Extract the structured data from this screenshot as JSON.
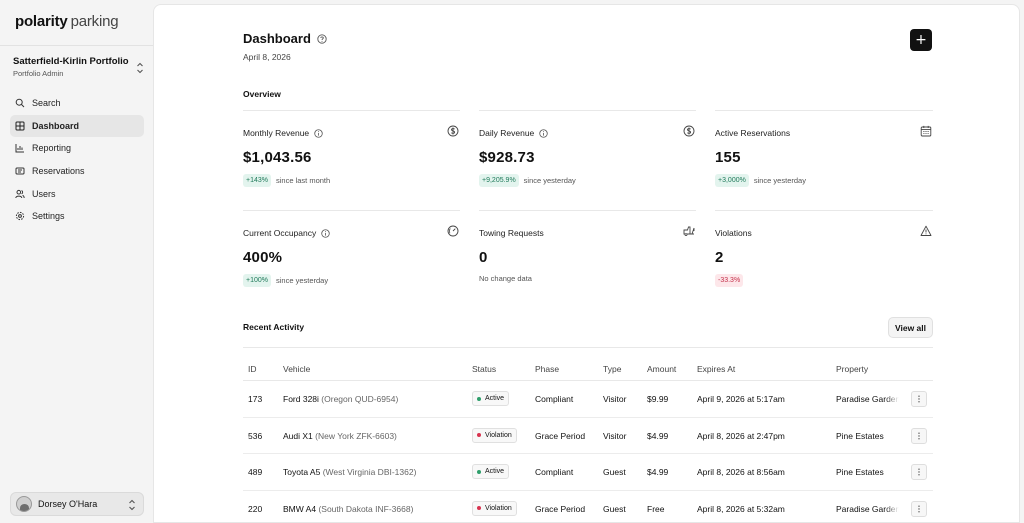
{
  "app": {
    "logo_brand": "polarity",
    "logo_product": "parking"
  },
  "portfolio": {
    "name": "Satterfield-Kirlin Portfolio",
    "role": "Portfolio Admin"
  },
  "nav": [
    {
      "label": "Search",
      "icon": "search-icon"
    },
    {
      "label": "Dashboard",
      "icon": "dashboard-icon",
      "active": true
    },
    {
      "label": "Reporting",
      "icon": "chart-icon"
    },
    {
      "label": "Reservations",
      "icon": "ticket-icon"
    },
    {
      "label": "Users",
      "icon": "users-icon"
    },
    {
      "label": "Settings",
      "icon": "gear-icon"
    }
  ],
  "user": {
    "name": "Dorsey O'Hara"
  },
  "page": {
    "title": "Dashboard",
    "date": "April 8, 2026",
    "add_label": "+"
  },
  "overview": {
    "title": "Overview",
    "cards": [
      {
        "label": "Monthly Revenue",
        "value": "$1,043.56",
        "change": "+143%",
        "trend": "up",
        "note": "since last month",
        "icon": "dollar-circle-icon",
        "info": true
      },
      {
        "label": "Daily Revenue",
        "value": "$928.73",
        "change": "+9,205.9%",
        "trend": "up",
        "note": "since yesterday",
        "icon": "dollar-circle-icon",
        "info": true
      },
      {
        "label": "Active Reservations",
        "value": "155",
        "change": "+3,000%",
        "trend": "up",
        "note": "since yesterday",
        "icon": "calendar-icon",
        "info": false
      },
      {
        "label": "Current Occupancy",
        "value": "400%",
        "change": "+100%",
        "trend": "up",
        "note": "since yesterday",
        "icon": "gauge-icon",
        "info": true
      },
      {
        "label": "Towing Requests",
        "value": "0",
        "change": "",
        "trend": "none",
        "note": "No change data",
        "icon": "tow-truck-icon",
        "info": false
      },
      {
        "label": "Violations",
        "value": "2",
        "change": "-33.3%",
        "trend": "down",
        "note": "",
        "icon": "warning-icon",
        "info": false
      }
    ]
  },
  "activity": {
    "title": "Recent Activity",
    "view_all_label": "View all",
    "columns": [
      "ID",
      "Vehicle",
      "Status",
      "Phase",
      "Type",
      "Amount",
      "Expires At",
      "Property"
    ],
    "rows": [
      {
        "id": "173",
        "vehicle": "Ford 328i",
        "plate": "(Oregon QUD-6954)",
        "status": "Active",
        "phase": "Compliant",
        "type": "Visitor",
        "amount": "$9.99",
        "expires": "April 9, 2026 at 5:17am",
        "property": "Paradise Gardens"
      },
      {
        "id": "536",
        "vehicle": "Audi X1",
        "plate": "(New York ZFK-6603)",
        "status": "Violation",
        "phase": "Grace Period",
        "type": "Visitor",
        "amount": "$4.99",
        "expires": "April 8, 2026 at 2:47pm",
        "property": "Pine Estates"
      },
      {
        "id": "489",
        "vehicle": "Toyota A5",
        "plate": "(West Virginia DBI-1362)",
        "status": "Active",
        "phase": "Compliant",
        "type": "Guest",
        "amount": "$4.99",
        "expires": "April 8, 2026 at 8:56am",
        "property": "Pine Estates"
      },
      {
        "id": "220",
        "vehicle": "BMW A4",
        "plate": "(South Dakota INF-3668)",
        "status": "Violation",
        "phase": "Grace Period",
        "type": "Guest",
        "amount": "Free",
        "expires": "April 8, 2026 at 5:32am",
        "property": "Paradise Gardens"
      }
    ]
  },
  "colors": {
    "active_dot": "#2e9e6b",
    "violation_dot": "#d8334f",
    "accent_dark": "#111111"
  }
}
